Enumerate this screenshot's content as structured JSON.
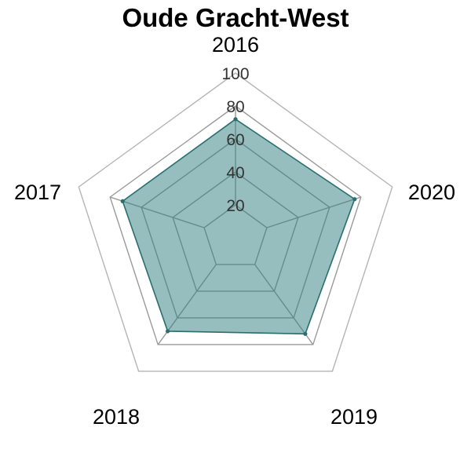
{
  "chart_data": {
    "type": "radar",
    "title": "Oude Gracht-West",
    "categories": [
      "2016",
      "2017",
      "2018",
      "2019",
      "2020"
    ],
    "series": [
      {
        "values": [
          72,
          72,
          70,
          72,
          76
        ]
      }
    ],
    "rlim": [
      0,
      100
    ],
    "ticks": [
      "20",
      "40",
      "60",
      "80",
      "100"
    ],
    "grid": true,
    "colors": {
      "fill": "#2e7d7d",
      "line": "#2a6e6e",
      "grid_inner": "#9a9a9a",
      "grid_outer": "#b5b5b5"
    }
  }
}
